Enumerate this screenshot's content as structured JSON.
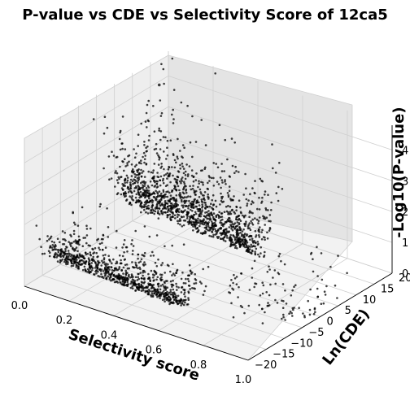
{
  "chart_data": {
    "type": "scatter",
    "subtype": "3d",
    "title": "P-value vs CDE vs Selectivity Score of 12ca5",
    "xlabel": "Selectivity score",
    "ylabel": "Ln(CDE)",
    "zlabel": "-Log10(P-value)",
    "xlim": [
      0,
      1
    ],
    "ylim": [
      -20,
      20
    ],
    "zlim": [
      0,
      4.8
    ],
    "xticks": [
      "0.0",
      "0.2",
      "0.4",
      "0.6",
      "0.8",
      "1.0"
    ],
    "yticks": [
      "−20",
      "−15",
      "−10",
      "−5",
      "0",
      "5",
      "10",
      "15",
      "20"
    ],
    "zticks": [
      "0",
      "1",
      "2",
      "3",
      "4"
    ],
    "grid": true,
    "marker_color": "#000000",
    "clusters": [
      {
        "description": "low selectivity, negative CDE, V-shaped",
        "x_range": [
          0.0,
          0.6
        ],
        "ln_cde_center": -12,
        "ln_cde_spread": 5,
        "z_max": 2.2
      },
      {
        "description": "low selectivity, positive CDE, V-shaped",
        "x_range": [
          0.0,
          0.6
        ],
        "ln_cde_center": 8,
        "ln_cde_spread": 6,
        "z_max": 4.8
      },
      {
        "description": "high selectivity, sparse",
        "x_range": [
          0.6,
          1.0
        ],
        "ln_cde_center": 0,
        "ln_cde_spread": 12,
        "z_max": 2.0
      }
    ],
    "highlight_points": [
      {
        "x": 0.12,
        "y": 10,
        "z": 4.7
      }
    ]
  }
}
